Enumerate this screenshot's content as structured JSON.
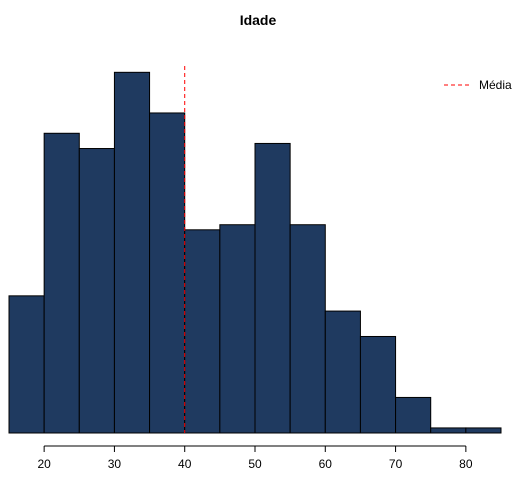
{
  "chart_data": {
    "type": "bar",
    "title": "Idade",
    "xlabel": "",
    "ylabel": "",
    "bin_width": 5,
    "bins": [
      {
        "start": 15,
        "end": 20,
        "count": 27
      },
      {
        "start": 20,
        "end": 25,
        "count": 59
      },
      {
        "start": 25,
        "end": 30,
        "count": 56
      },
      {
        "start": 30,
        "end": 35,
        "count": 71
      },
      {
        "start": 35,
        "end": 40,
        "count": 63
      },
      {
        "start": 40,
        "end": 45,
        "count": 40
      },
      {
        "start": 45,
        "end": 50,
        "count": 41
      },
      {
        "start": 50,
        "end": 55,
        "count": 57
      },
      {
        "start": 55,
        "end": 60,
        "count": 41
      },
      {
        "start": 60,
        "end": 65,
        "count": 24
      },
      {
        "start": 65,
        "end": 70,
        "count": 19
      },
      {
        "start": 70,
        "end": 75,
        "count": 7
      },
      {
        "start": 75,
        "end": 80,
        "count": 1
      },
      {
        "start": 80,
        "end": 85,
        "count": 1
      }
    ],
    "x_ticks": [
      20,
      30,
      40,
      50,
      60,
      70,
      80
    ],
    "xlim": [
      15,
      85
    ],
    "ylim": [
      0,
      75
    ],
    "y_axis_visible": false,
    "grid": false,
    "bar_color": "#1f3a60",
    "mean_line": {
      "x": 40,
      "label": "Média",
      "color": "#ff0000",
      "style": "dashed"
    },
    "legend": {
      "entries": [
        "Média"
      ],
      "placement": "top-right"
    }
  }
}
